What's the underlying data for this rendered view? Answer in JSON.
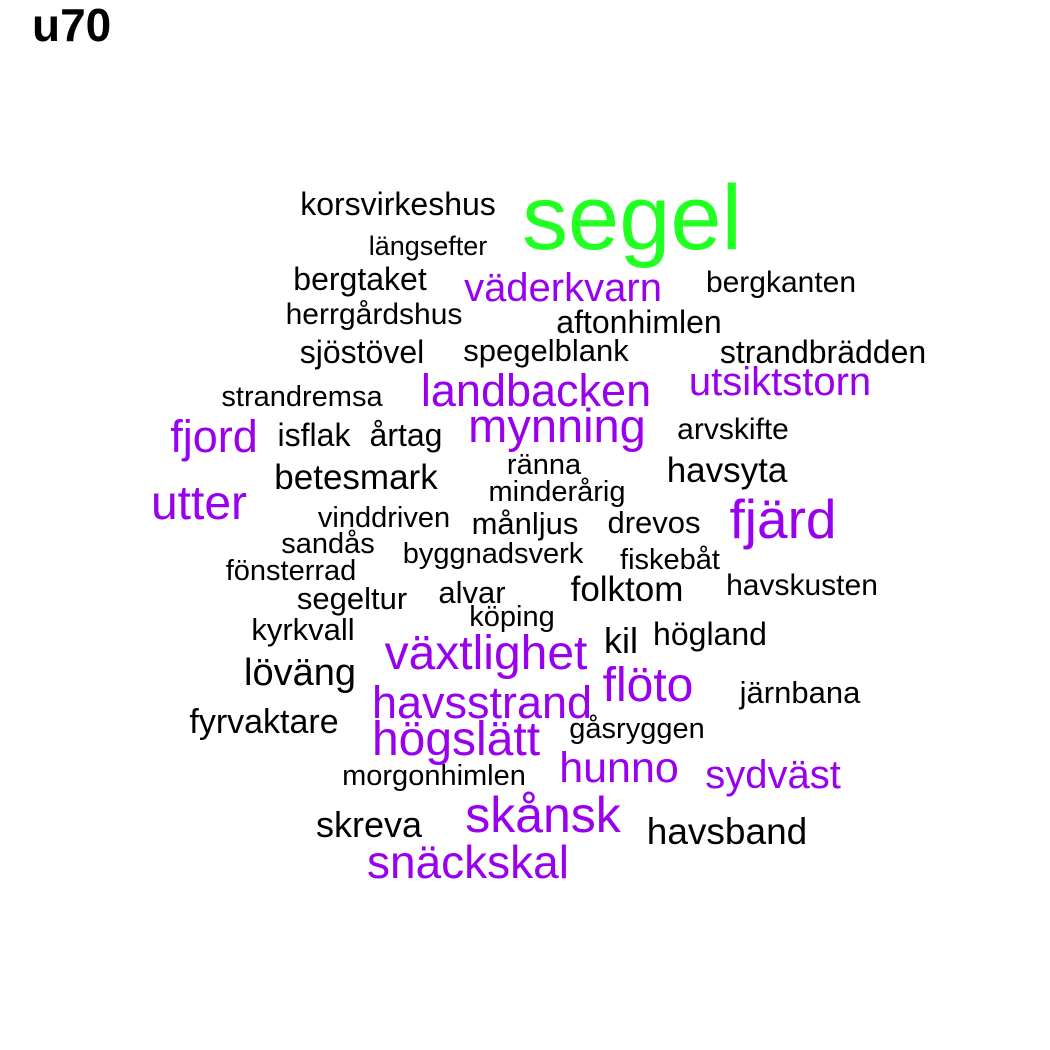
{
  "title": "u70",
  "colors": {
    "top": "#22ff22",
    "highlight": "#9900ee",
    "normal": "#000000"
  },
  "words": [
    {
      "text": "segel",
      "level": "top"
    },
    {
      "text": "korsvirkeshus",
      "level": "normal"
    },
    {
      "text": "längsefter",
      "level": "normal"
    },
    {
      "text": "bergtaket",
      "level": "normal"
    },
    {
      "text": "väderkvarn",
      "level": "highlight"
    },
    {
      "text": "bergkanten",
      "level": "normal"
    },
    {
      "text": "herrgårdshus",
      "level": "normal"
    },
    {
      "text": "aftonhimlen",
      "level": "normal"
    },
    {
      "text": "sjöstövel",
      "level": "normal"
    },
    {
      "text": "spegelblank",
      "level": "normal"
    },
    {
      "text": "strandbrädden",
      "level": "normal"
    },
    {
      "text": "strandremsa",
      "level": "normal"
    },
    {
      "text": "landbacken",
      "level": "highlight"
    },
    {
      "text": "utsiktstorn",
      "level": "highlight"
    },
    {
      "text": "fjord",
      "level": "highlight"
    },
    {
      "text": "isflak",
      "level": "normal"
    },
    {
      "text": "årtag",
      "level": "normal"
    },
    {
      "text": "mynning",
      "level": "highlight"
    },
    {
      "text": "arvskifte",
      "level": "normal"
    },
    {
      "text": "ränna",
      "level": "normal"
    },
    {
      "text": "betesmark",
      "level": "normal"
    },
    {
      "text": "havsyta",
      "level": "normal"
    },
    {
      "text": "minderårig",
      "level": "normal"
    },
    {
      "text": "utter",
      "level": "highlight"
    },
    {
      "text": "fjärd",
      "level": "highlight"
    },
    {
      "text": "vinddriven",
      "level": "normal"
    },
    {
      "text": "månljus",
      "level": "normal"
    },
    {
      "text": "drevos",
      "level": "normal"
    },
    {
      "text": "sandås",
      "level": "normal"
    },
    {
      "text": "byggnadsverk",
      "level": "normal"
    },
    {
      "text": "fiskebåt",
      "level": "normal"
    },
    {
      "text": "fönsterrad",
      "level": "normal"
    },
    {
      "text": "havskusten",
      "level": "normal"
    },
    {
      "text": "folktom",
      "level": "normal"
    },
    {
      "text": "alvar",
      "level": "normal"
    },
    {
      "text": "segeltur",
      "level": "normal"
    },
    {
      "text": "köping",
      "level": "normal"
    },
    {
      "text": "kyrkvall",
      "level": "normal"
    },
    {
      "text": "kil",
      "level": "normal"
    },
    {
      "text": "högland",
      "level": "normal"
    },
    {
      "text": "växtlighet",
      "level": "highlight"
    },
    {
      "text": "löväng",
      "level": "normal"
    },
    {
      "text": "flöto",
      "level": "highlight"
    },
    {
      "text": "järnbana",
      "level": "normal"
    },
    {
      "text": "havsstrand",
      "level": "highlight"
    },
    {
      "text": "fyrvaktare",
      "level": "normal"
    },
    {
      "text": "högslätt",
      "level": "highlight"
    },
    {
      "text": "gåsryggen",
      "level": "normal"
    },
    {
      "text": "morgonhimlen",
      "level": "normal"
    },
    {
      "text": "hunno",
      "level": "highlight"
    },
    {
      "text": "sydväst",
      "level": "highlight"
    },
    {
      "text": "skånsk",
      "level": "highlight"
    },
    {
      "text": "skreva",
      "level": "normal"
    },
    {
      "text": "havsband",
      "level": "normal"
    },
    {
      "text": "snäckskal",
      "level": "highlight"
    }
  ]
}
